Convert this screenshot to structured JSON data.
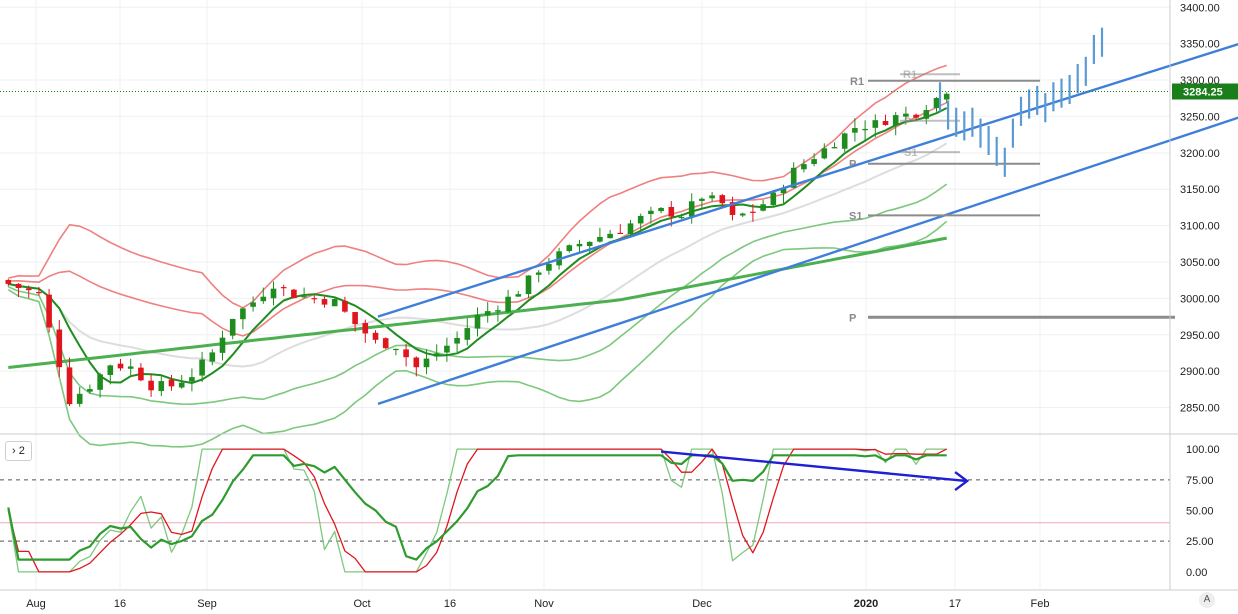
{
  "chart_data": [
    {
      "type": "candlestick",
      "title": "",
      "price_axis_labels": [
        "3400.00",
        "3350.00",
        "3300.00",
        "3250.00",
        "3200.00",
        "3150.00",
        "3100.00",
        "3050.00",
        "3000.00",
        "2950.00",
        "2900.00",
        "2850.00"
      ],
      "time_axis_labels": [
        "Aug",
        "16",
        "Sep",
        "Oct",
        "16",
        "Nov",
        "Dec",
        "2020",
        "17",
        "Feb"
      ],
      "last_price": "3284.25",
      "ylim": [
        2815,
        3410
      ],
      "grid": true,
      "colors": {
        "up": "#1e8c1e",
        "down": "#e0161f",
        "channel": "#3f7fd9",
        "forecast": "#5b9bd5",
        "bb_upper": "#f08080",
        "bb_lower": "#7dc87d",
        "sma_long": "#4caf50",
        "sma_short": "#dddddd",
        "pivot": "#8c8c8c",
        "price_badge": "#1a7f1a"
      },
      "pivot_labels": [
        {
          "label": "R1",
          "value": 3299
        },
        {
          "label": "R1",
          "value": 3308
        },
        {
          "label": "P",
          "value": 3244
        },
        {
          "label": "S1",
          "value": 3201
        },
        {
          "label": "P",
          "value": 3185
        },
        {
          "label": "S1",
          "value": 3114
        },
        {
          "label": "P",
          "value": 2974
        }
      ],
      "channel_upper": [
        [
          3,
          2975
        ],
        [
          101,
          3410
        ]
      ],
      "channel_lower": [
        [
          3,
          2855
        ],
        [
          101,
          3312
        ]
      ]
    },
    {
      "type": "line",
      "indicator_label": "2",
      "y_axis_labels": [
        "100.00",
        "75.00",
        "50.00",
        "25.00",
        "0.00"
      ],
      "ylim": [
        -5,
        105
      ],
      "reference_lines": [
        75,
        25,
        40
      ],
      "divergence_arrow": {
        "from": [
          64,
          98
        ],
        "to": [
          94,
          74
        ]
      },
      "colors": {
        "main": "#2e9b2e",
        "k": "#e0161f",
        "d": "#7dc87d",
        "arrow": "#1f1fd6"
      }
    }
  ]
}
